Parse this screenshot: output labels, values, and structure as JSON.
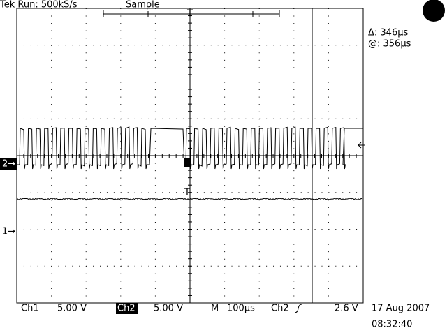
{
  "header": {
    "status": "Tek Run: 500kS/s",
    "mode": "Sample",
    "trigger_marker": "T"
  },
  "cursor": {
    "delta": "Δ: 346µs",
    "at": "@: 356µs"
  },
  "channel_markers": {
    "ch2": "2→",
    "ch1": "1→",
    "ch1_trigger": "T"
  },
  "footer": {
    "ch1_label": "Ch1",
    "ch1_scale": "5.00 V",
    "ch2_label": "Ch2",
    "ch2_scale": "5.00 V",
    "timebase_label": "M",
    "timebase": "100µs",
    "trigger_source": "Ch2",
    "trigger_level": "2.6 V",
    "date": "17 Aug 2007",
    "time": "08:32:40"
  }
}
